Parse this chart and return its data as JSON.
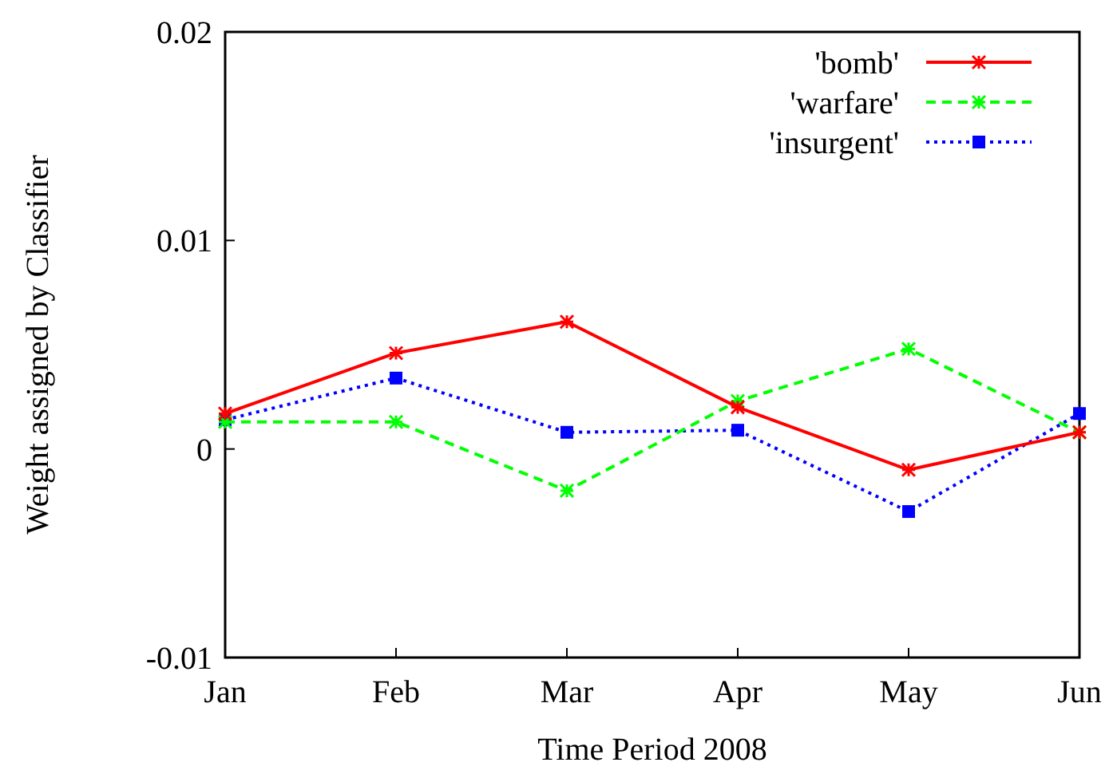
{
  "chart_data": {
    "type": "line",
    "xlabel": "Time Period 2008",
    "ylabel": "Weight assigned by Classifier",
    "categories": [
      "Jan",
      "Feb",
      "Mar",
      "Apr",
      "May",
      "Jun"
    ],
    "ylim": [
      -0.01,
      0.02
    ],
    "yticks": [
      -0.01,
      0,
      0.01,
      0.02
    ],
    "grid": false,
    "legend": "top right",
    "series": [
      {
        "name": "'bomb'",
        "color": "#ff0000",
        "line_style": "solid",
        "marker": "cross",
        "values": [
          0.0017,
          0.0046,
          0.0061,
          0.002,
          -0.001,
          0.0008
        ]
      },
      {
        "name": "'warfare'",
        "color": "#00ff00",
        "line_style": "dashed",
        "marker": "cross",
        "values": [
          0.0013,
          0.0013,
          -0.002,
          0.0023,
          0.0048,
          0.0008
        ]
      },
      {
        "name": "'insurgent'",
        "color": "#0000ff",
        "line_style": "dotted",
        "marker": "square",
        "values": [
          0.0014,
          0.0034,
          0.0008,
          0.0009,
          -0.003,
          0.0017
        ]
      }
    ]
  }
}
